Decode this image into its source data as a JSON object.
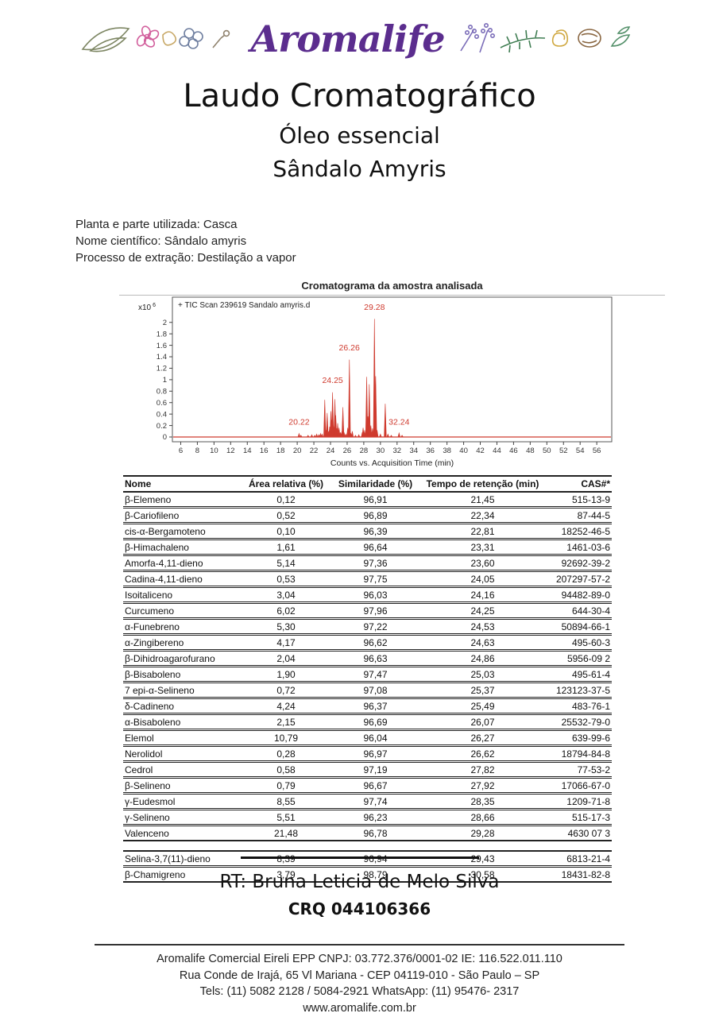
{
  "header": {
    "brand": "Aromalife",
    "brand_color": "#5b2d8e"
  },
  "title": {
    "main": "Laudo Cromatográfico",
    "subtitle1": "Óleo essencial",
    "subtitle2": "Sândalo Amyris"
  },
  "sample_info": {
    "line1": "Planta e parte utilizada: Casca",
    "line2": "Nome científico: Sândalo amyris",
    "line3": "Processo de extração: Destilação a vapor"
  },
  "chart_data": {
    "type": "line",
    "title": "Cromatograma da amostra analisada",
    "trace_label": "+ TIC Scan 239619 Sandalo amyris.d",
    "scale_label": "x10",
    "scale_exp": "6",
    "xlabel": "Counts vs. Acquisition Time (min)",
    "xlim": [
      5.0,
      57.8
    ],
    "ylim": [
      -0.083,
      2.44
    ],
    "xticks": [
      6,
      8,
      10,
      12,
      14,
      16,
      18,
      20,
      22,
      24,
      26,
      28,
      30,
      32,
      34,
      36,
      38,
      40,
      42,
      44,
      46,
      48,
      50,
      52,
      54,
      56
    ],
    "yticks": [
      "0",
      "0.2",
      "0.4",
      "0.6",
      "0.8",
      "1",
      "1.2",
      "1.4",
      "1.6",
      "1.8",
      "2"
    ],
    "line_color": "#cf3a2e",
    "grid": false,
    "peaks": [
      [
        20.22,
        0.06
      ],
      [
        20.45,
        0.03
      ],
      [
        21.3,
        0.03
      ],
      [
        21.75,
        0.04
      ],
      [
        22.1,
        0.03
      ],
      [
        22.34,
        0.05
      ],
      [
        22.6,
        0.04
      ],
      [
        22.81,
        0.06
      ],
      [
        23.0,
        0.05
      ],
      [
        23.31,
        0.65
      ],
      [
        23.45,
        0.12
      ],
      [
        23.6,
        0.42
      ],
      [
        23.75,
        0.1
      ],
      [
        23.9,
        0.18
      ],
      [
        24.05,
        0.45
      ],
      [
        24.16,
        0.3
      ],
      [
        24.25,
        0.78
      ],
      [
        24.35,
        0.2
      ],
      [
        24.53,
        0.66
      ],
      [
        24.63,
        0.38
      ],
      [
        24.75,
        0.15
      ],
      [
        24.86,
        0.24
      ],
      [
        25.03,
        0.16
      ],
      [
        25.2,
        0.08
      ],
      [
        25.37,
        0.1
      ],
      [
        25.49,
        0.52
      ],
      [
        25.65,
        0.07
      ],
      [
        25.85,
        0.05
      ],
      [
        26.07,
        0.16
      ],
      [
        26.27,
        1.35
      ],
      [
        26.45,
        0.06
      ],
      [
        26.62,
        0.1
      ],
      [
        27.0,
        0.03
      ],
      [
        27.4,
        0.04
      ],
      [
        27.82,
        0.08
      ],
      [
        27.92,
        0.16
      ],
      [
        28.1,
        0.12
      ],
      [
        28.35,
        1.05
      ],
      [
        28.5,
        0.36
      ],
      [
        28.66,
        0.92
      ],
      [
        28.85,
        0.2
      ],
      [
        29.05,
        0.15
      ],
      [
        29.28,
        2.06
      ],
      [
        29.43,
        1.06
      ],
      [
        29.6,
        0.12
      ],
      [
        30.0,
        0.05
      ],
      [
        30.58,
        0.58
      ],
      [
        30.9,
        0.05
      ],
      [
        31.3,
        0.03
      ],
      [
        32.24,
        0.07
      ],
      [
        32.6,
        0.03
      ]
    ],
    "peak_labels": [
      {
        "rt": 20.22,
        "text": "20.22",
        "y": 0.17
      },
      {
        "rt": 24.25,
        "text": "24.25",
        "y": 0.9
      },
      {
        "rt": 26.26,
        "text": "26.26",
        "y": 1.47
      },
      {
        "rt": 29.28,
        "text": "29.28",
        "y": 2.18
      },
      {
        "rt": 32.24,
        "text": "32.24",
        "y": 0.17
      }
    ]
  },
  "table": {
    "columns": [
      "Nome",
      "Área relativa (%)",
      "Similaridade (%)",
      "Tempo de retenção (min)",
      "CAS#*"
    ],
    "rows": [
      [
        "β-Elemeno",
        "0,12",
        "96,91",
        "21,45",
        "515-13-9"
      ],
      [
        "β-Cariofileno",
        "0,52",
        "96,89",
        "22,34",
        "87-44-5"
      ],
      [
        "cis-α-Bergamoteno",
        "0,10",
        "96,39",
        "22,81",
        "18252-46-5"
      ],
      [
        "β-Himachaleno",
        "1,61",
        "96,64",
        "23,31",
        "1461-03-6"
      ],
      [
        "Amorfa-4,11-dieno",
        "5,14",
        "97,36",
        "23,60",
        "92692-39-2"
      ],
      [
        "Cadina-4,11-dieno",
        "0,53",
        "97,75",
        "24,05",
        "207297-57-2"
      ],
      [
        "Isoitaliceno",
        "3,04",
        "96,03",
        "24,16",
        "94482-89-0"
      ],
      [
        "Curcumeno",
        "6,02",
        "97,96",
        "24,25",
        "644-30-4"
      ],
      [
        "α-Funebreno",
        "5,30",
        "97,22",
        "24,53",
        "50894-66-1"
      ],
      [
        "α-Zingibereno",
        "4,17",
        "96,62",
        "24,63",
        "495-60-3"
      ],
      [
        "β-Dihidroagarofurano",
        "2,04",
        "96,63",
        "24,86",
        "5956-09 2"
      ],
      [
        "β-Bisaboleno",
        "1,90",
        "97,47",
        "25,03",
        "495-61-4"
      ],
      [
        "7 epi-α-Selineno",
        "0,72",
        "97,08",
        "25,37",
        "123123-37-5"
      ],
      [
        "δ-Cadineno",
        "4,24",
        "96,37",
        "25,49",
        "483-76-1"
      ],
      [
        "α-Bisaboleno",
        "2,15",
        "96,69",
        "26,07",
        "25532-79-0"
      ],
      [
        "Elemol",
        "10,79",
        "96,04",
        "26,27",
        "639-99-6"
      ],
      [
        "Nerolidol",
        "0,28",
        "96,97",
        "26,62",
        "18794-84-8"
      ],
      [
        "Cedrol",
        "0,58",
        "97,19",
        "27,82",
        "77-53-2"
      ],
      [
        "β-Selineno",
        "0,79",
        "96,67",
        "27,92",
        "17066-67-0"
      ],
      [
        "γ-Eudesmol",
        "8,55",
        "97,74",
        "28,35",
        "1209-71-8"
      ],
      [
        "γ-Selineno",
        "5,51",
        "96,23",
        "28,66",
        "515-17-3"
      ],
      [
        "Valenceno",
        "21,48",
        "96,78",
        "29,28",
        "4630 07 3"
      ]
    ],
    "rows_group2": [
      [
        "Selina-3,7(11)-dieno",
        "8,39",
        "96,94",
        "29,43",
        "6813-21-4"
      ],
      [
        "β-Chamigreno",
        "3,79",
        "98,79",
        "30,58",
        "18431-82-8"
      ]
    ]
  },
  "signature": {
    "rt_label": "RT: Bruna Leticia de Melo Silva",
    "crq": "CRQ 044106366"
  },
  "footer": {
    "line1": "Aromalife Comercial Eireli EPP CNPJ: 03.772.376/0001-02 IE: 116.522.011.110",
    "line2": "Rua  Conde de Irajá, 65 Vl Mariana - CEP 04119-010 - São Paulo – SP",
    "line3": "Tels: (11) 5082 2128 / 5084-2921  WhatsApp: (11) 95476- 2317",
    "line4": "www.aromalife.com.br"
  }
}
